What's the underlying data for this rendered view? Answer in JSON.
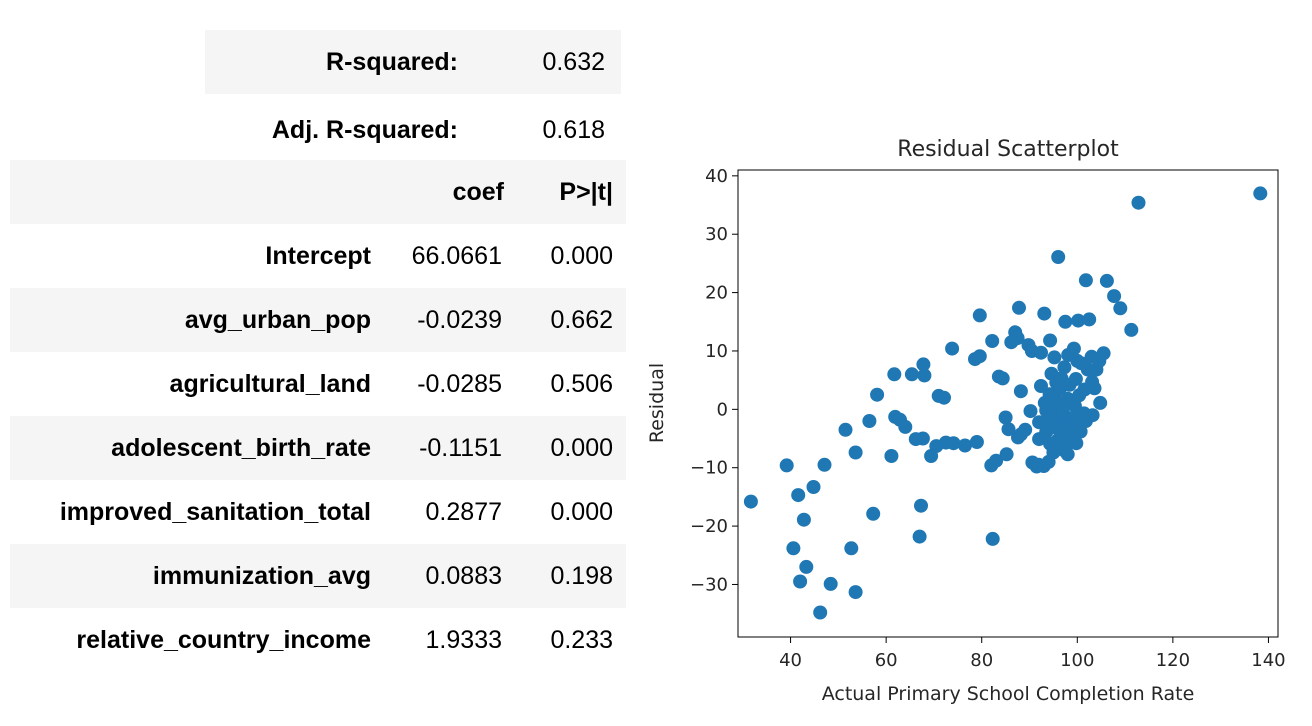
{
  "fit_stats": [
    {
      "label": "R-squared:",
      "value": "0.632"
    },
    {
      "label": "Adj. R-squared:",
      "value": "0.618"
    }
  ],
  "coef_table": {
    "headers": [
      "",
      "coef",
      "P>|t|"
    ],
    "rows": [
      {
        "name": "Intercept",
        "coef": "66.0661",
        "p": "0.000"
      },
      {
        "name": "avg_urban_pop",
        "coef": "-0.0239",
        "p": "0.662"
      },
      {
        "name": "agricultural_land",
        "coef": "-0.0285",
        "p": "0.506"
      },
      {
        "name": "adolescent_birth_rate",
        "coef": "-0.1151",
        "p": "0.000"
      },
      {
        "name": "improved_sanitation_total",
        "coef": "0.2877",
        "p": "0.000"
      },
      {
        "name": "immunization_avg",
        "coef": "0.0883",
        "p": "0.198"
      },
      {
        "name": "relative_country_income",
        "coef": "1.9333",
        "p": "0.233"
      }
    ]
  },
  "colors": {
    "row_shade": "#f5f5f5",
    "point": "#1f77b4"
  },
  "chart_data": {
    "type": "scatter",
    "title": "Residual Scatterplot",
    "xlabel": "Actual Primary School Completion Rate",
    "ylabel": "Residual",
    "xlim": [
      29,
      142
    ],
    "ylim": [
      -39,
      41
    ],
    "xticks": [
      40,
      60,
      80,
      100,
      120,
      140
    ],
    "yticks": [
      -30,
      -20,
      -10,
      0,
      10,
      20,
      30,
      40
    ],
    "x_tick_labels": [
      "40",
      "60",
      "80",
      "100",
      "120",
      "140"
    ],
    "y_tick_labels": [
      "−30",
      "−20",
      "−10",
      "0",
      "10",
      "20",
      "30",
      "40"
    ],
    "grid": false,
    "points": [
      [
        31.7,
        -15.8
      ],
      [
        39.2,
        -9.6
      ],
      [
        40.6,
        -23.8
      ],
      [
        41.6,
        -14.7
      ],
      [
        42.0,
        -29.5
      ],
      [
        42.8,
        -18.9
      ],
      [
        43.3,
        -27.0
      ],
      [
        44.8,
        -13.3
      ],
      [
        46.2,
        -34.8
      ],
      [
        47.1,
        -9.5
      ],
      [
        48.4,
        -29.9
      ],
      [
        51.5,
        -3.5
      ],
      [
        52.7,
        -23.8
      ],
      [
        53.6,
        -7.4
      ],
      [
        53.6,
        -31.3
      ],
      [
        56.5,
        -2.0
      ],
      [
        57.3,
        -17.9
      ],
      [
        58.1,
        2.5
      ],
      [
        61.1,
        -8.0
      ],
      [
        61.7,
        6.0
      ],
      [
        61.9,
        -1.3
      ],
      [
        62.9,
        -1.8
      ],
      [
        64.0,
        -3.0
      ],
      [
        65.4,
        6.0
      ],
      [
        66.2,
        -5.1
      ],
      [
        67.0,
        -21.8
      ],
      [
        67.3,
        -16.5
      ],
      [
        67.7,
        -5.0
      ],
      [
        67.8,
        7.7
      ],
      [
        68.0,
        5.8
      ],
      [
        69.4,
        -8.0
      ],
      [
        70.5,
        -6.3
      ],
      [
        71.0,
        2.3
      ],
      [
        72.1,
        2.0
      ],
      [
        72.5,
        -5.7
      ],
      [
        73.8,
        10.4
      ],
      [
        74.1,
        -5.8
      ],
      [
        76.5,
        -6.2
      ],
      [
        78.6,
        8.6
      ],
      [
        79.0,
        -5.6
      ],
      [
        79.6,
        9.1
      ],
      [
        79.6,
        16.1
      ],
      [
        82.2,
        11.7
      ],
      [
        82.0,
        -9.6
      ],
      [
        82.3,
        -22.2
      ],
      [
        83.0,
        -8.8
      ],
      [
        83.6,
        5.6
      ],
      [
        84.4,
        5.3
      ],
      [
        85.0,
        -1.4
      ],
      [
        85.2,
        -7.7
      ],
      [
        85.6,
        -3.4
      ],
      [
        86.2,
        11.5
      ],
      [
        87.0,
        13.2
      ],
      [
        87.5,
        12.2
      ],
      [
        87.6,
        -4.8
      ],
      [
        87.8,
        17.4
      ],
      [
        88.2,
        -4.3
      ],
      [
        88.2,
        3.1
      ],
      [
        89.1,
        -3.5
      ],
      [
        89.8,
        11.0
      ],
      [
        90.5,
        10.0
      ],
      [
        90.6,
        -9.1
      ],
      [
        90.2,
        -0.3
      ],
      [
        91.5,
        -9.8
      ],
      [
        91.9,
        -9.5
      ],
      [
        92.0,
        -5.1
      ],
      [
        92.0,
        -2.2
      ],
      [
        92.4,
        9.7
      ],
      [
        92.4,
        4.0
      ],
      [
        93.0,
        -9.7
      ],
      [
        93.1,
        16.4
      ],
      [
        93.2,
        1.1
      ],
      [
        93.5,
        -0.2
      ],
      [
        93.5,
        -3.9
      ],
      [
        93.8,
        -1.8
      ],
      [
        94.0,
        -9.0
      ],
      [
        94.2,
        2.6
      ],
      [
        94.3,
        -5.9
      ],
      [
        94.3,
        11.8
      ],
      [
        94.6,
        6.1
      ],
      [
        95.0,
        -7.4
      ],
      [
        95.2,
        8.9
      ],
      [
        95.2,
        0.1
      ],
      [
        95.5,
        -3.1
      ],
      [
        95.6,
        1.6
      ],
      [
        95.6,
        4.6
      ],
      [
        96.0,
        26.1
      ],
      [
        96.0,
        -5.2
      ],
      [
        96.2,
        -1.3
      ],
      [
        96.4,
        3.6
      ],
      [
        96.5,
        -6.1
      ],
      [
        96.7,
        5.3
      ],
      [
        96.8,
        -4.0
      ],
      [
        97.0,
        -0.6
      ],
      [
        97.2,
        -7.0
      ],
      [
        97.3,
        7.2
      ],
      [
        97.3,
        0.8
      ],
      [
        97.5,
        15.0
      ],
      [
        97.5,
        -2.6
      ],
      [
        97.8,
        -3.9
      ],
      [
        98.0,
        -7.7
      ],
      [
        98.0,
        1.8
      ],
      [
        98.1,
        9.3
      ],
      [
        98.3,
        -1.8
      ],
      [
        98.4,
        4.2
      ],
      [
        98.7,
        -5.6
      ],
      [
        99.2,
        -1.4
      ],
      [
        99.3,
        10.4
      ],
      [
        99.5,
        0.6
      ],
      [
        99.6,
        -3.7
      ],
      [
        99.7,
        5.2
      ],
      [
        99.8,
        -5.8
      ],
      [
        100.0,
        8.3
      ],
      [
        100.2,
        15.2
      ],
      [
        100.3,
        -1.8
      ],
      [
        100.4,
        2.4
      ],
      [
        100.7,
        -3.8
      ],
      [
        100.8,
        7.9
      ],
      [
        101.4,
        -0.7
      ],
      [
        101.5,
        3.4
      ],
      [
        101.8,
        22.1
      ],
      [
        101.8,
        -2.0
      ],
      [
        102.2,
        6.8
      ],
      [
        102.5,
        15.4
      ],
      [
        103.0,
        9.0
      ],
      [
        103.1,
        4.7
      ],
      [
        103.2,
        -1.0
      ],
      [
        103.6,
        3.6
      ],
      [
        104.0,
        6.8
      ],
      [
        104.6,
        8.3
      ],
      [
        104.8,
        1.1
      ],
      [
        105.5,
        9.6
      ],
      [
        106.2,
        22.0
      ],
      [
        107.7,
        19.4
      ],
      [
        109.0,
        17.3
      ],
      [
        111.3,
        13.6
      ],
      [
        112.8,
        35.4
      ],
      [
        138.3,
        37.0
      ]
    ]
  }
}
